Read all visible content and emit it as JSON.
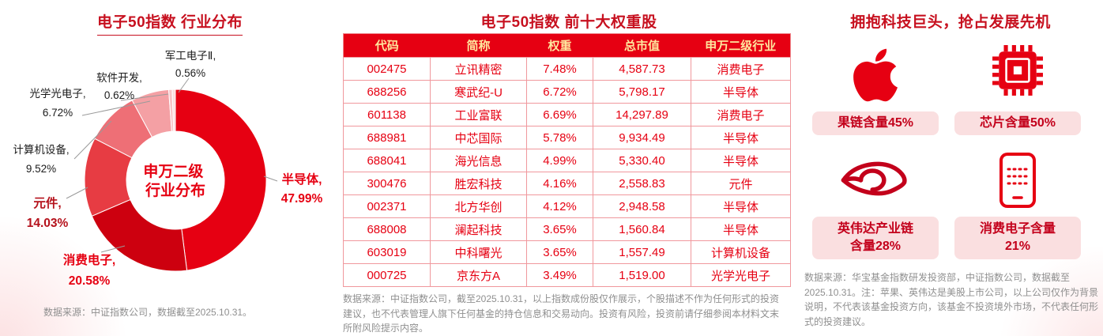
{
  "theme": {
    "primary_red": "#e60012",
    "title_red": "#c7101f",
    "table_header_text": "#ffe79e",
    "pill_bg": "#fadfe0",
    "pill_text": "#c3001b",
    "note_gray": "#8f8f8f"
  },
  "chart_data": [
    {
      "type": "pie",
      "title": "电子50指数 行业分布",
      "center_label_line1": "申万二级",
      "center_label_line2": "行业分布",
      "legend_position": "around",
      "segments": [
        {
          "label": "半导体",
          "value": 47.99,
          "color": "#e60012"
        },
        {
          "label": "消费电子",
          "value": 20.58,
          "color": "#cd000f"
        },
        {
          "label": "元件",
          "value": 14.03,
          "color": "#e73c43"
        },
        {
          "label": "计算机设备",
          "value": 9.52,
          "color": "#ee6f76"
        },
        {
          "label": "光学光电子",
          "value": 6.72,
          "color": "#f4a0a4"
        },
        {
          "label": "软件开发",
          "value": 0.62,
          "color": "#f8c3c6"
        },
        {
          "label": "军工电子Ⅱ",
          "value": 0.56,
          "color": "#fbdcde"
        }
      ],
      "source_note": "数据来源：中证指数公司，数据截至2025.10.31。"
    },
    {
      "type": "table",
      "title": "电子50指数 前十大权重股",
      "headers": [
        "代码",
        "简称",
        "权重",
        "总市值",
        "申万二级行业"
      ],
      "rows": [
        [
          "002475",
          "立讯精密",
          "7.48%",
          "4,587.73",
          "消费电子"
        ],
        [
          "688256",
          "寒武纪-U",
          "6.72%",
          "5,798.17",
          "半导体"
        ],
        [
          "601138",
          "工业富联",
          "6.69%",
          "14,297.89",
          "消费电子"
        ],
        [
          "688981",
          "中芯国际",
          "5.78%",
          "9,934.49",
          "半导体"
        ],
        [
          "688041",
          "海光信息",
          "4.99%",
          "5,330.40",
          "半导体"
        ],
        [
          "300476",
          "胜宏科技",
          "4.16%",
          "2,558.83",
          "元件"
        ],
        [
          "002371",
          "北方华创",
          "4.12%",
          "2,948.58",
          "半导体"
        ],
        [
          "688008",
          "澜起科技",
          "3.65%",
          "1,560.84",
          "半导体"
        ],
        [
          "603019",
          "中科曙光",
          "3.65%",
          "1,557.49",
          "计算机设备"
        ],
        [
          "000725",
          "京东方A",
          "3.49%",
          "1,519.00",
          "光学光电子"
        ]
      ],
      "footnote": "数据来源：中证指数公司，截至2025.10.31，以上指数成份股仅作展示，个股描述不作为任何形式的投资建议，也不代表管理人旗下任何基金的持仓信息和交易动向。投资有风险，投资前请仔细参阅本材料文末所附风险提示内容。"
    }
  ],
  "right_panel": {
    "title": "拥抱科技巨头，抢占发展先机",
    "cards": [
      {
        "icon": "apple-logo-icon",
        "label": "果链含量45%"
      },
      {
        "icon": "chip-icon",
        "label": "芯片含量50%"
      },
      {
        "icon": "nvidia-logo-icon",
        "label": "英伟达产业链\n含量28%"
      },
      {
        "icon": "smartphone-icon",
        "label": "消费电子含量\n21%"
      }
    ],
    "footnote": "数据来源：华宝基金指数研发投资部，中证指数公司，数据截至2025.10.31。注：苹果、英伟达是美股上市公司，以上公司仅作为背景说明，不代表该基金投资方向，该基金不投资境外市场，不代表任何形式的投资建议。"
  }
}
